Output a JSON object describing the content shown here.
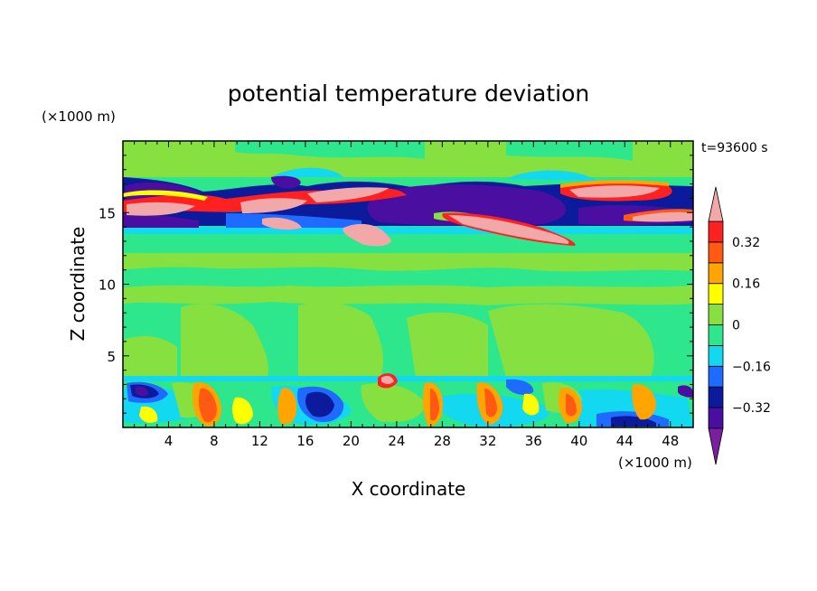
{
  "chart_data": {
    "type": "heatmap",
    "title": "potential temperature deviation",
    "xlabel": "X coordinate",
    "ylabel": "Z coordinate",
    "x_unit": "(×1000 m)",
    "y_unit": "(×1000 m)",
    "time_label": "t=93600 s",
    "xlim": [
      0,
      50
    ],
    "ylim": [
      0,
      20
    ],
    "x_ticks": [
      4,
      8,
      12,
      16,
      20,
      24,
      28,
      32,
      36,
      40,
      44,
      48
    ],
    "y_ticks": [
      5,
      10,
      15
    ],
    "colorbar": {
      "levels": [
        -0.4,
        -0.32,
        -0.24,
        -0.16,
        -0.08,
        0,
        0.08,
        0.16,
        0.24,
        0.32,
        0.4
      ],
      "tick_labels": [
        "0.32",
        "0.16",
        "0",
        "−0.16",
        "−0.32"
      ],
      "tick_values": [
        0.32,
        0.16,
        0,
        -0.16,
        -0.32
      ],
      "colors": {
        "below": "#7b1fa2",
        "bands": [
          "#4a0fa0",
          "#0c1a9c",
          "#1f6bff",
          "#12d8f0",
          "#2ee68c",
          "#86e040",
          "#ffff00",
          "#ffa400",
          "#ff5a14",
          "#ff2020"
        ],
        "above": "#f2a8a8"
      }
    },
    "layers": [
      {
        "z_range": [
          17.5,
          20
        ],
        "dominant_value": 0.04
      },
      {
        "z_range": [
          14,
          17.5
        ],
        "description_values": [
          -0.36,
          0.36
        ]
      },
      {
        "z_range": [
          12.5,
          14
        ],
        "dominant_value": -0.1
      },
      {
        "z_range": [
          3.5,
          12.5
        ],
        "dominant_value": 0.05
      },
      {
        "z_range": [
          0,
          3.5
        ],
        "dominant_value": -0.05
      }
    ]
  }
}
